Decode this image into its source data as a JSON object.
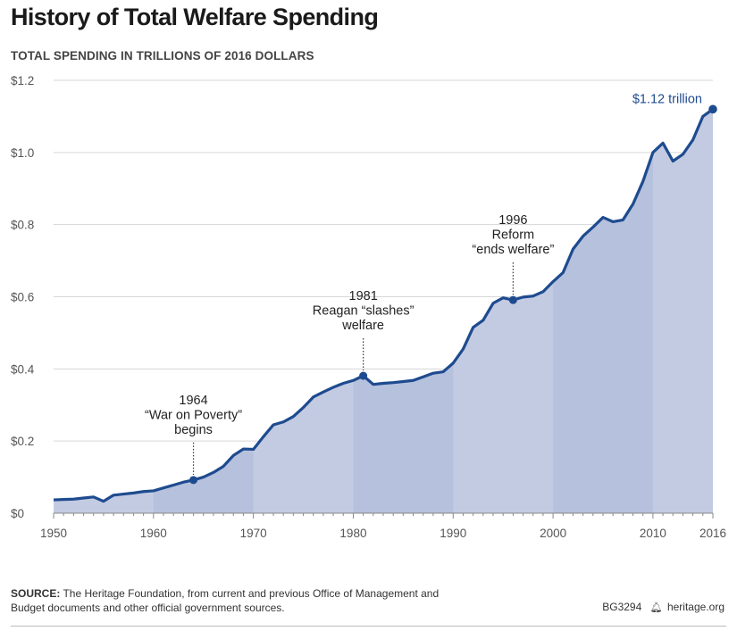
{
  "title": "History of Total Welfare Spending",
  "subtitle": "TOTAL SPENDING IN TRILLIONS OF 2016 DOLLARS",
  "source_label": "SOURCE:",
  "source_text": "The Heritage Foundation, from current and previous Office of Management and Budget documents and other official government sources.",
  "report_id": "BG3294",
  "site": "heritage.org",
  "colors": {
    "line": "#1e4b8f",
    "area": "#c3cbe2",
    "area_alt": "#b6c1dd",
    "grid": "#d6d6d6",
    "accent_text": "#1e4b8f"
  },
  "chart_data": {
    "type": "area",
    "title": "History of Total Welfare Spending",
    "ylabel": "TOTAL SPENDING IN TRILLIONS OF 2016 DOLLARS",
    "xlabel": "",
    "xlim": [
      1950,
      2016
    ],
    "ylim": [
      0,
      1.2
    ],
    "grid": true,
    "yticks": [
      0,
      0.2,
      0.4,
      0.6,
      0.8,
      1.0,
      1.2
    ],
    "ytick_labels": [
      "$0",
      "$0.2",
      "$0.4",
      "$0.6",
      "$0.8",
      "$1.0",
      "$1.2"
    ],
    "xticks": [
      1950,
      1960,
      1970,
      1980,
      1990,
      2000,
      2010,
      2016
    ],
    "xtick_labels": [
      "1950",
      "1960",
      "1970",
      "1980",
      "1990",
      "2000",
      "2010",
      "2016"
    ],
    "shaded_bands": [
      [
        1960,
        1970
      ],
      [
        1980,
        1990
      ],
      [
        2000,
        2010
      ]
    ],
    "x": [
      1950,
      1951,
      1952,
      1953,
      1954,
      1955,
      1956,
      1957,
      1958,
      1959,
      1960,
      1961,
      1962,
      1963,
      1964,
      1965,
      1966,
      1967,
      1968,
      1969,
      1970,
      1971,
      1972,
      1973,
      1974,
      1975,
      1976,
      1977,
      1978,
      1979,
      1980,
      1981,
      1982,
      1983,
      1984,
      1985,
      1986,
      1987,
      1988,
      1989,
      1990,
      1991,
      1992,
      1993,
      1994,
      1995,
      1996,
      1997,
      1998,
      1999,
      2000,
      2001,
      2002,
      2003,
      2004,
      2005,
      2006,
      2007,
      2008,
      2009,
      2010,
      2011,
      2012,
      2013,
      2014,
      2015,
      2016
    ],
    "values": [
      0.037,
      0.038,
      0.039,
      0.042,
      0.045,
      0.033,
      0.05,
      0.053,
      0.056,
      0.06,
      0.062,
      0.07,
      0.078,
      0.086,
      0.092,
      0.1,
      0.113,
      0.13,
      0.16,
      0.178,
      0.177,
      0.212,
      0.245,
      0.253,
      0.268,
      0.293,
      0.322,
      0.336,
      0.349,
      0.36,
      0.368,
      0.381,
      0.357,
      0.36,
      0.362,
      0.365,
      0.368,
      0.378,
      0.388,
      0.392,
      0.416,
      0.455,
      0.515,
      0.535,
      0.582,
      0.597,
      0.591,
      0.599,
      0.602,
      0.614,
      0.642,
      0.667,
      0.732,
      0.768,
      0.793,
      0.82,
      0.808,
      0.813,
      0.857,
      0.92,
      1.0,
      1.026,
      0.976,
      0.995,
      1.035,
      1.1,
      1.12
    ],
    "annotations": [
      {
        "year": 1964,
        "value": 0.092,
        "lines": [
          "1964",
          "“War on Poverty”",
          "begins"
        ]
      },
      {
        "year": 1981,
        "value": 0.381,
        "lines": [
          "1981",
          "Reagan “slashes”",
          "welfare"
        ]
      },
      {
        "year": 1996,
        "value": 0.591,
        "lines": [
          "1996",
          "Reform",
          "“ends welfare”"
        ]
      }
    ],
    "end_label": {
      "year": 2016,
      "value": 1.12,
      "text": "$1.12 trillion"
    }
  }
}
